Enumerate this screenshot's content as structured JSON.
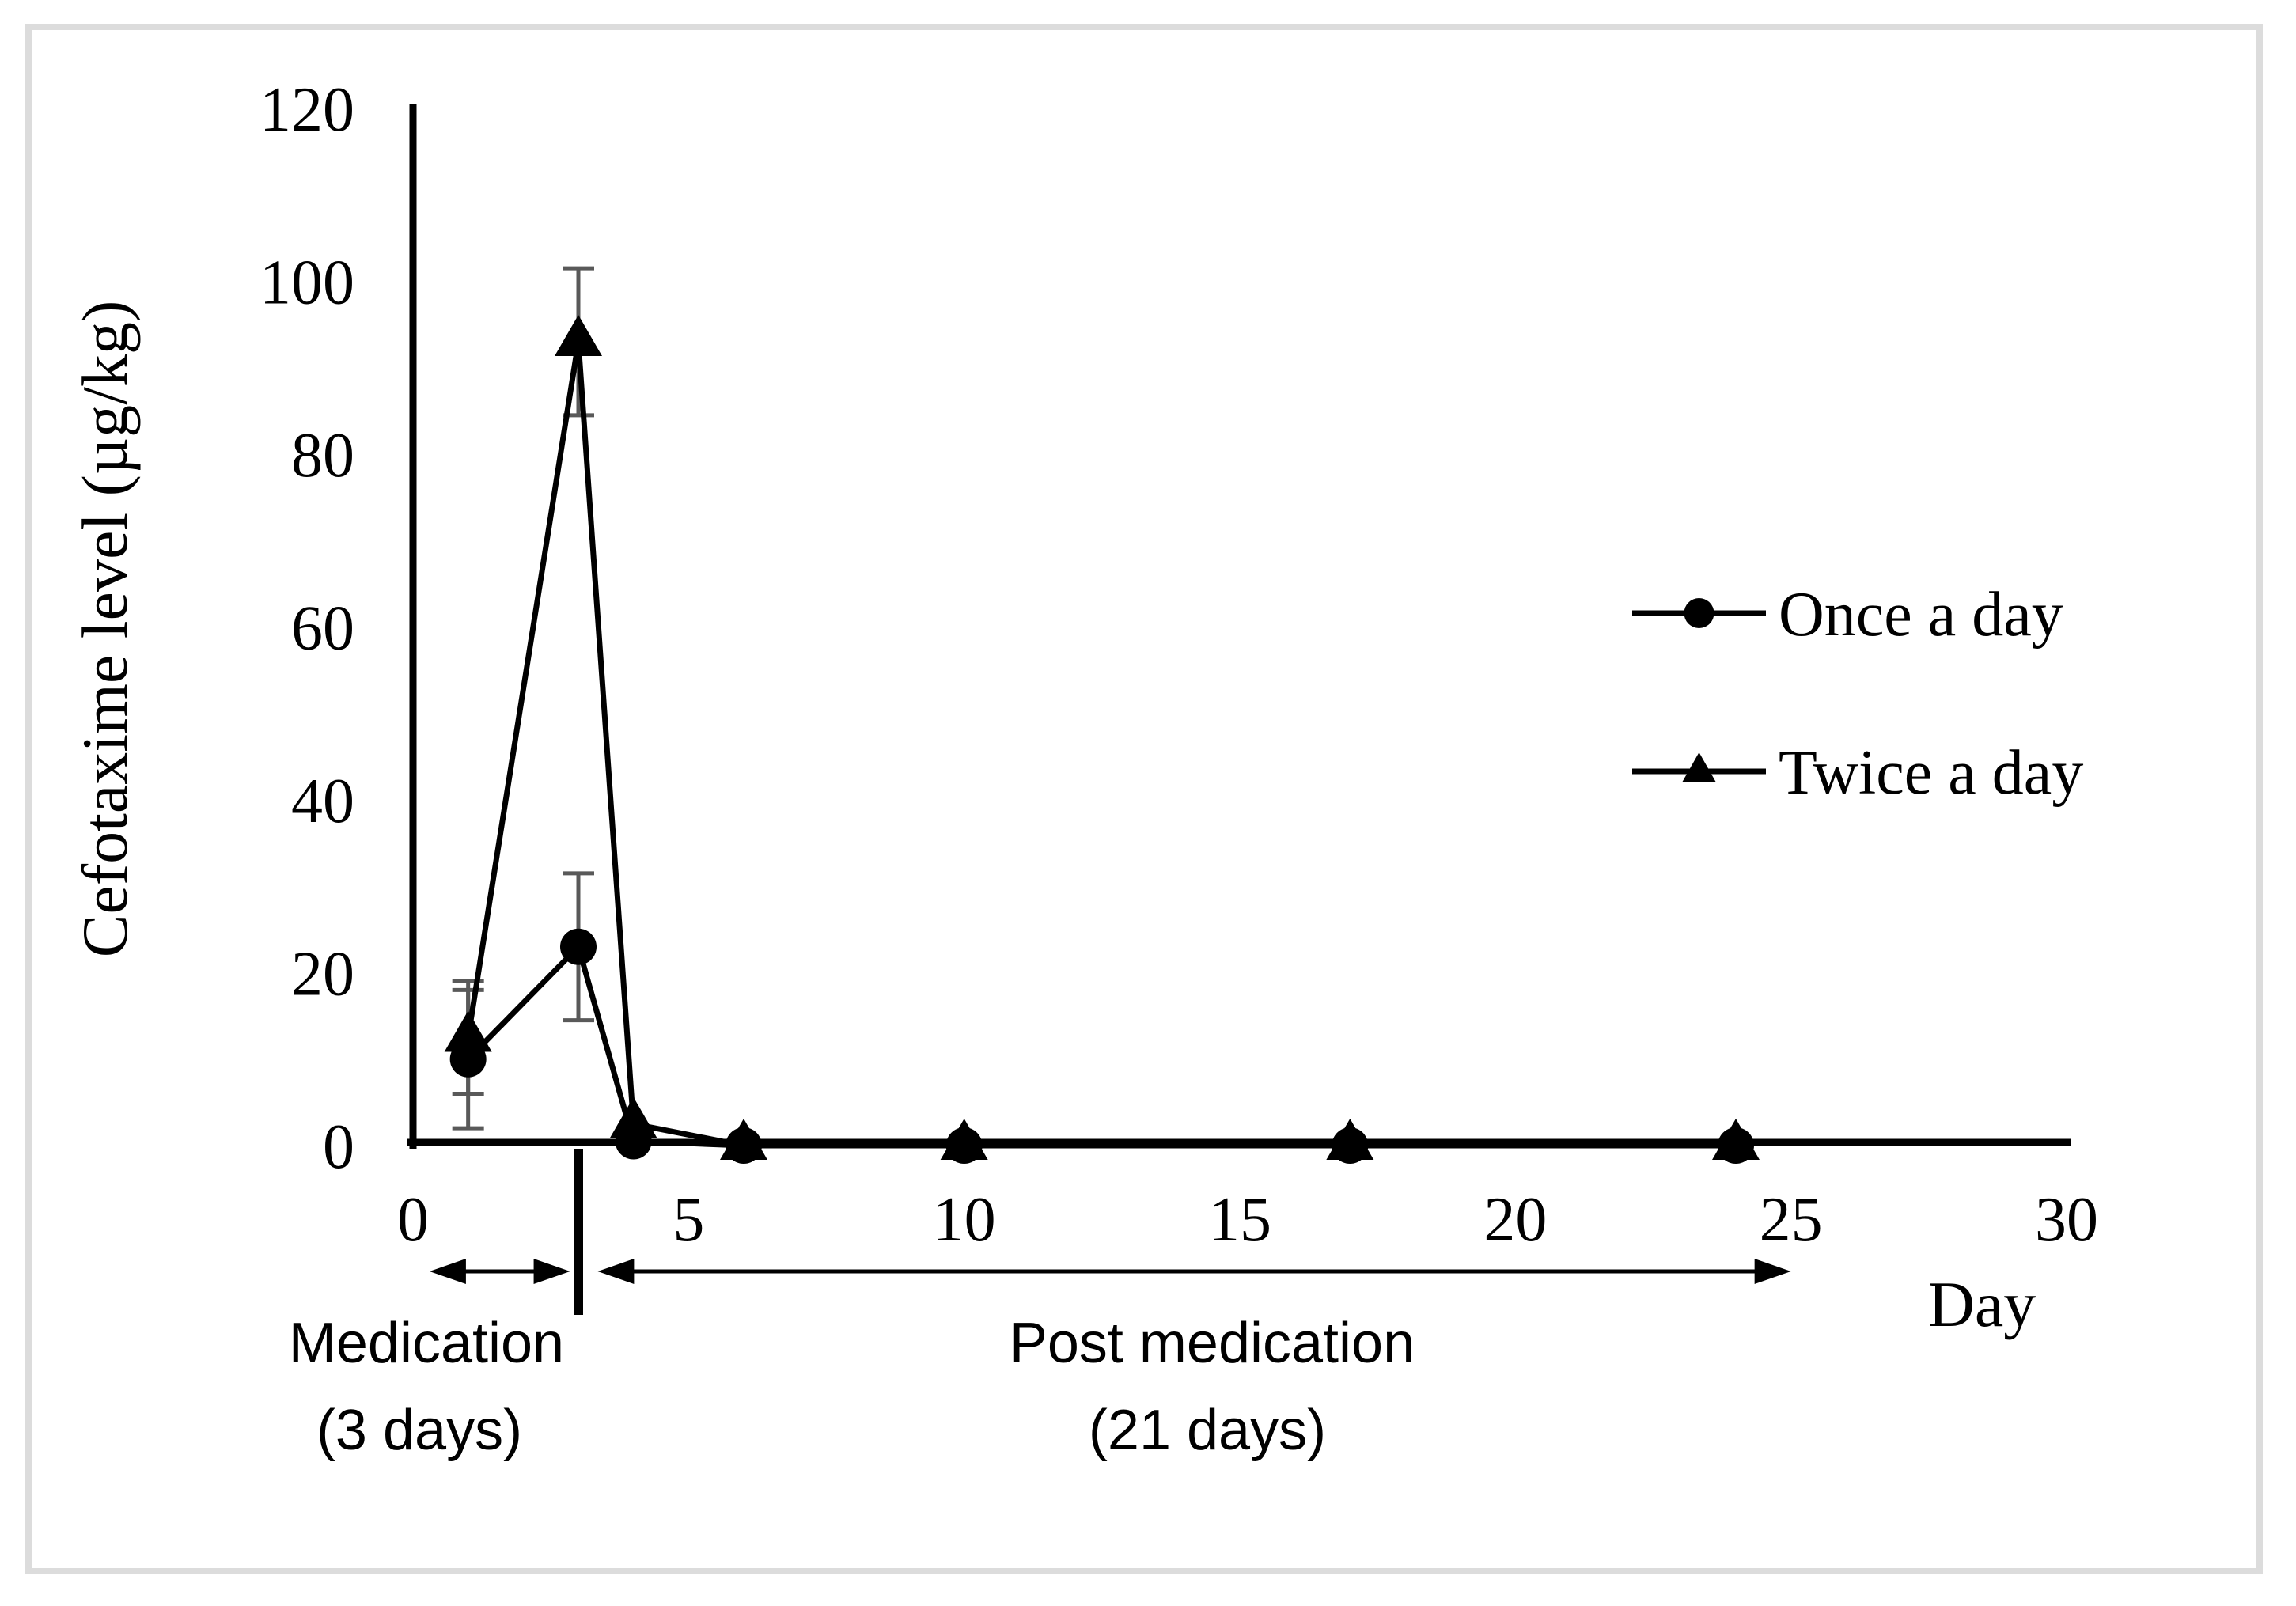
{
  "figure": {
    "background": "#ffffff",
    "border_color": "#dcdcdc",
    "ink_color": "#000000",
    "error_bar_color": "#595959"
  },
  "chart_data": {
    "type": "line",
    "title": "",
    "xlabel": "Day",
    "ylabel": "Cefotaxime level (µg/kg)",
    "xlim": [
      0,
      30
    ],
    "ylim": [
      0,
      120
    ],
    "x_ticks": [
      0,
      5,
      10,
      15,
      20,
      25,
      30
    ],
    "y_ticks": [
      0,
      20,
      40,
      60,
      80,
      100,
      120
    ],
    "grid": false,
    "legend_position": "right-middle",
    "x": [
      1,
      3,
      4,
      6,
      10,
      17,
      24
    ],
    "series": [
      {
        "name": "Once a day",
        "marker": "circle",
        "color": "#000000",
        "values": [
          10,
          23,
          0.5,
          0,
          0,
          0,
          0
        ],
        "errors": [
          8,
          8.5,
          0,
          0,
          0,
          0,
          0
        ]
      },
      {
        "name": "Twice a day",
        "marker": "triangle",
        "color": "#000000",
        "values": [
          12.5,
          93,
          2.5,
          0,
          0,
          0,
          0
        ],
        "errors": [
          6.5,
          8.5,
          0,
          0,
          0,
          0,
          0
        ]
      }
    ],
    "annotations": {
      "medication": {
        "line1": "Medication",
        "line2": "(3 days)",
        "span_days": [
          0.3,
          2.85
        ]
      },
      "post_medication": {
        "line1": "Post medication",
        "line2": "(21 days)",
        "span_days": [
          3.35,
          25.0
        ]
      },
      "divider_day": 3
    }
  }
}
